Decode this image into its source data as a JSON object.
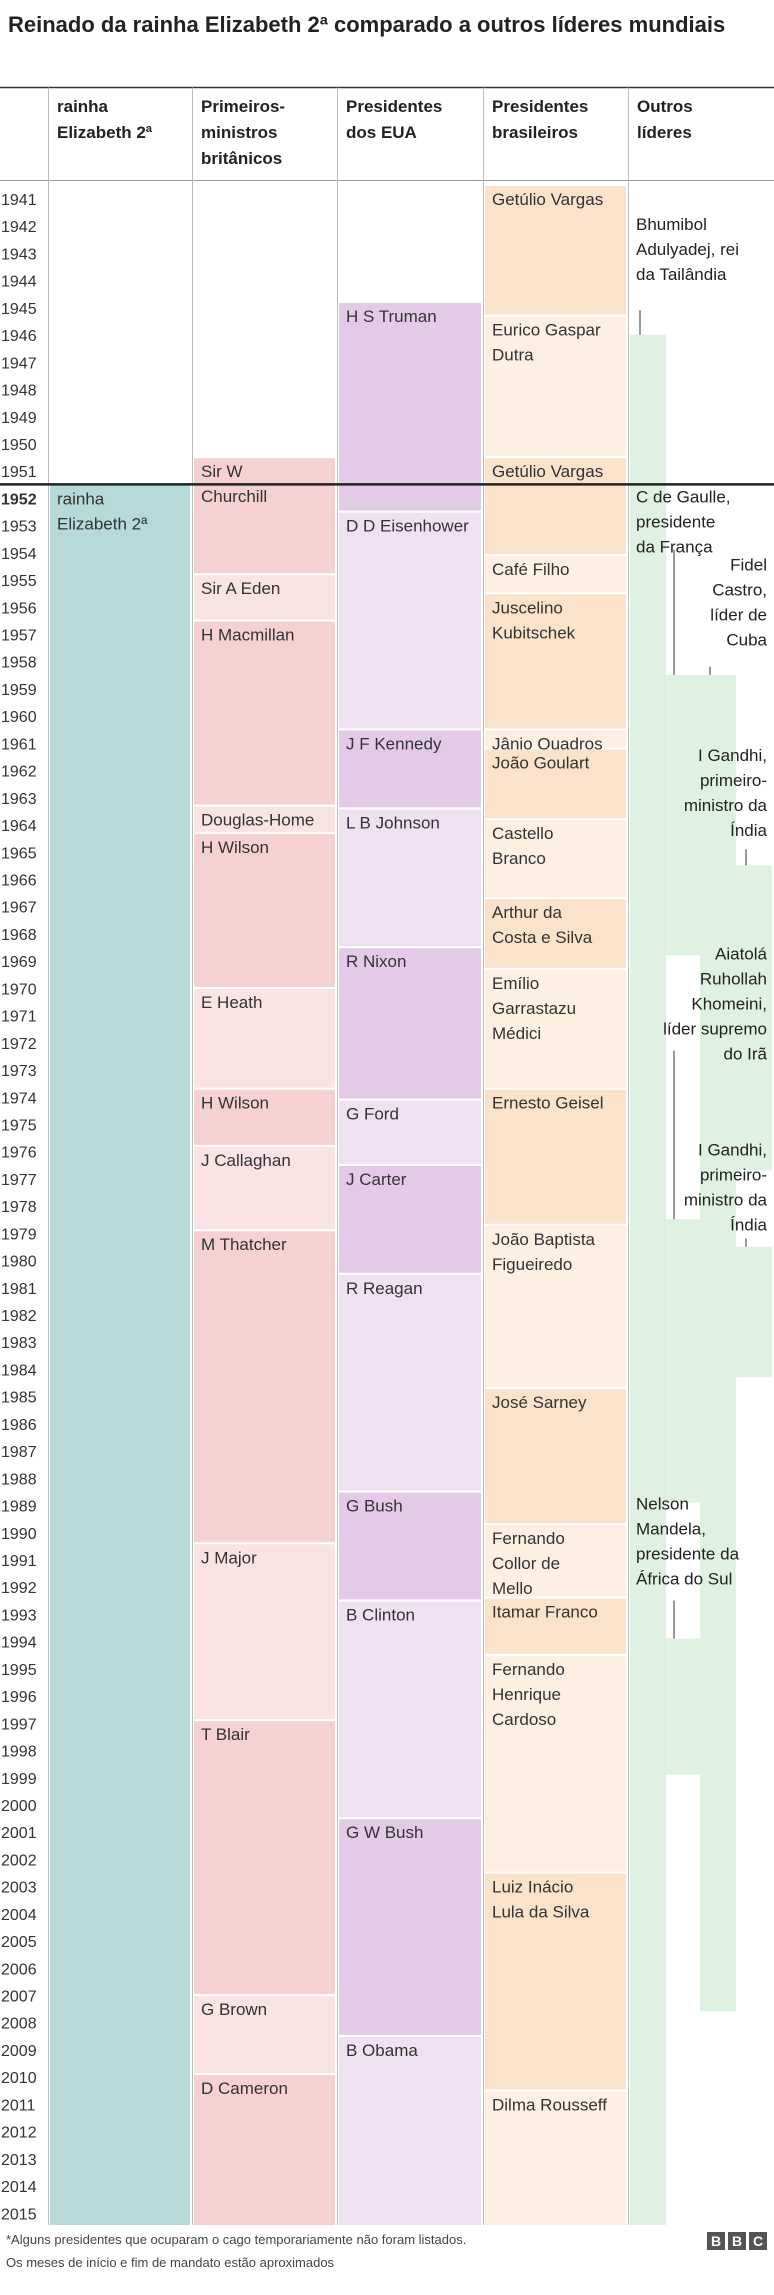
{
  "title": "Reinado da rainha Elizabeth 2ª comparado a outros líderes mundiais",
  "footer": {
    "note1": "*Alguns presidentes que ocuparam o cago temporariamente não foram listados.",
    "note2": "Os meses de início e fim de mandato estão aproximados"
  },
  "logo": [
    "B",
    "B",
    "C"
  ],
  "colors": {
    "queen": "#b6d9d9",
    "uk_a": "#f5d1d1",
    "uk_b": "#f9e3e3",
    "us_a": "#e3cbe8",
    "us_b": "#f0e1f2",
    "br_a": "#fbe2cb",
    "br_b": "#fdf0e3",
    "other": "#d9eedc",
    "divider": "#222222"
  },
  "chart_data": {
    "type": "table",
    "year_range": [
      1941,
      2015
    ],
    "years": [
      1941,
      1942,
      1943,
      1944,
      1945,
      1946,
      1947,
      1948,
      1949,
      1950,
      1951,
      1952,
      1953,
      1954,
      1955,
      1956,
      1957,
      1958,
      1959,
      1960,
      1961,
      1962,
      1963,
      1964,
      1965,
      1966,
      1967,
      1968,
      1969,
      1970,
      1971,
      1972,
      1973,
      1974,
      1975,
      1976,
      1977,
      1978,
      1979,
      1980,
      1981,
      1982,
      1983,
      1984,
      1985,
      1986,
      1987,
      1988,
      1989,
      1990,
      1991,
      1992,
      1993,
      1994,
      1995,
      1996,
      1997,
      1998,
      1999,
      2000,
      2001,
      2002,
      2003,
      2004,
      2005,
      2006,
      2007,
      2008,
      2009,
      2010,
      2011,
      2012,
      2013,
      2014,
      2015
    ],
    "highlight_year": 1952,
    "columns": [
      {
        "header": "rainha Elizabeth 2ª",
        "terms": [
          {
            "name": "rainha Elizabeth 2ª",
            "start": 1952,
            "end": 2016
          }
        ]
      },
      {
        "header": "Primeiros-ministros britânicos",
        "terms": [
          {
            "name": "Sir W Churchill",
            "start": 1951,
            "end": 1955.3
          },
          {
            "name": "Sir A Eden",
            "start": 1955.3,
            "end": 1957.0
          },
          {
            "name": "H Macmillan",
            "start": 1957.0,
            "end": 1963.8
          },
          {
            "name": "Douglas-Home",
            "start": 1963.8,
            "end": 1964.8
          },
          {
            "name": "H Wilson",
            "start": 1964.8,
            "end": 1970.5
          },
          {
            "name": "E Heath",
            "start": 1970.5,
            "end": 1974.2
          },
          {
            "name": "H Wilson",
            "start": 1974.2,
            "end": 1976.3
          },
          {
            "name": "J Callaghan",
            "start": 1976.3,
            "end": 1979.4
          },
          {
            "name": "M Thatcher",
            "start": 1979.4,
            "end": 1990.9
          },
          {
            "name": "J Major",
            "start": 1990.9,
            "end": 1997.4
          },
          {
            "name": "T Blair",
            "start": 1997.4,
            "end": 2007.5
          },
          {
            "name": "G Brown",
            "start": 2007.5,
            "end": 2010.4
          },
          {
            "name": "D Cameron",
            "start": 2010.4,
            "end": 2016
          }
        ]
      },
      {
        "header": "Presidentes dos EUA",
        "terms": [
          {
            "name": "H S Truman",
            "start": 1945.3,
            "end": 1953.0
          },
          {
            "name": "D D Eisenhower",
            "start": 1953.0,
            "end": 1961.0
          },
          {
            "name": "J F Kennedy",
            "start": 1961.0,
            "end": 1963.9
          },
          {
            "name": "L B Johnson",
            "start": 1963.9,
            "end": 1969.0
          },
          {
            "name": "R Nixon",
            "start": 1969.0,
            "end": 1974.6
          },
          {
            "name": "G Ford",
            "start": 1974.6,
            "end": 1977.0
          },
          {
            "name": "J Carter",
            "start": 1977.0,
            "end": 1981.0
          },
          {
            "name": "R Reagan",
            "start": 1981.0,
            "end": 1989.0
          },
          {
            "name": "G Bush",
            "start": 1989.0,
            "end": 1993.0
          },
          {
            "name": "B Clinton",
            "start": 1993.0,
            "end": 2001.0
          },
          {
            "name": "G W Bush",
            "start": 2001.0,
            "end": 2009.0
          },
          {
            "name": "B Obama",
            "start": 2009.0,
            "end": 2016
          }
        ]
      },
      {
        "header": "Presidentes brasileiros",
        "terms": [
          {
            "name": "Getúlio Vargas",
            "start": 1941,
            "end": 1945.8
          },
          {
            "name": "Eurico Gaspar Dutra",
            "start": 1945.8,
            "end": 1951.0
          },
          {
            "name": "Getúlio Vargas",
            "start": 1951.0,
            "end": 1954.6
          },
          {
            "name": "Café Filho",
            "start": 1954.6,
            "end": 1956.0
          },
          {
            "name": "Juscelino Kubitschek",
            "start": 1956.0,
            "end": 1961.0
          },
          {
            "name": "Jânio Quadros",
            "start": 1961.0,
            "end": 1961.7
          },
          {
            "name": "João Goulart",
            "start": 1961.7,
            "end": 1964.3
          },
          {
            "name": "Castello Branco",
            "start": 1964.3,
            "end": 1967.2
          },
          {
            "name": "Arthur da Costa e Silva",
            "start": 1967.2,
            "end": 1969.8
          },
          {
            "name": "Emílio Garrastazu Médici",
            "start": 1969.8,
            "end": 1974.2
          },
          {
            "name": "Ernesto Geisel",
            "start": 1974.2,
            "end": 1979.2
          },
          {
            "name": "João Baptista Figueiredo",
            "start": 1979.2,
            "end": 1985.2
          },
          {
            "name": "José Sarney",
            "start": 1985.2,
            "end": 1990.2
          },
          {
            "name": "Fernando Collor de Mello",
            "start": 1990.2,
            "end": 1992.9
          },
          {
            "name": "Itamar Franco",
            "start": 1992.9,
            "end": 1995.0
          },
          {
            "name": "Fernando Henrique Cardoso",
            "start": 1995.0,
            "end": 2003.0
          },
          {
            "name": "Luiz Inácio Lula da Silva",
            "start": 2003.0,
            "end": 2011.0
          },
          {
            "name": "Dilma Rousseff",
            "start": 2011.0,
            "end": 2016
          }
        ]
      },
      {
        "header": "Outros líderes",
        "leaders": [
          {
            "lines": [
              "Bhumibol",
              "Adulyadej, rei",
              "da Tailândia"
            ],
            "start": 1946.5,
            "end": 2016,
            "label_year": 1942.0,
            "align": "left",
            "connector_year": 1945.6
          },
          {
            "lines": [
              "C de Gaulle,",
              "presidente",
              "da França"
            ],
            "start": 1959.0,
            "end": 1969.3,
            "label_year": 1952.0,
            "align": "left",
            "connector_year": 1954.4
          },
          {
            "lines": [
              "Fidel",
              "Castro,",
              "líder de",
              "Cuba"
            ],
            "start": 1959.0,
            "end": 2008.1,
            "label_year": 1954.5,
            "align": "right",
            "connector_year": 1958.7
          },
          {
            "lines": [
              "I Gandhi,",
              "primeiro-",
              "ministro da",
              "Índia"
            ],
            "start": 1966.0,
            "end": 1977.2,
            "label_year": 1961.5,
            "align": "right",
            "connector_year": 1965.4
          },
          {
            "lines": [
              "Aiatolá",
              "Ruhollah",
              "Khomeini,",
              "líder supremo",
              "do Irã"
            ],
            "start": 1979.0,
            "end": 1989.4,
            "label_year": 1968.8,
            "align": "right",
            "connector_year": 1972.8
          },
          {
            "lines": [
              "I Gandhi,",
              "primeiro-",
              "ministro da",
              "Índia"
            ],
            "start": 1980.0,
            "end": 1984.8,
            "label_year": 1976.0,
            "align": "right",
            "connector_year": 1979.7
          },
          {
            "lines": [
              "Nelson",
              "Mandela,",
              "presidente da",
              "África do Sul"
            ],
            "start": 1994.4,
            "end": 1999.4,
            "label_year": 1989.0,
            "align": "left",
            "connector_year": 1993.0
          }
        ]
      }
    ]
  }
}
